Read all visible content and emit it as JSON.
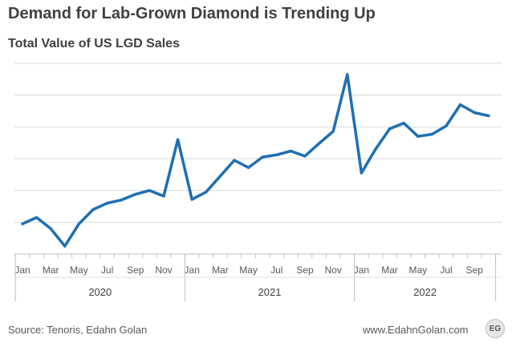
{
  "chart_data": {
    "type": "line",
    "title": "Demand for Lab-Grown Diamond is Trending Up",
    "subtitle": "Total Value of US LGD Sales",
    "xlabel": "",
    "ylabel": "",
    "ylim": [
      0,
      6
    ],
    "grid": true,
    "legend": "none",
    "line_color": "#1f6fb2",
    "categories": [
      "Jan 2020",
      "Feb 2020",
      "Mar 2020",
      "Apr 2020",
      "May 2020",
      "Jun 2020",
      "Jul 2020",
      "Aug 2020",
      "Sep 2020",
      "Oct 2020",
      "Nov 2020",
      "Dec 2020",
      "Jan 2021",
      "Feb 2021",
      "Mar 2021",
      "Apr 2021",
      "May 2021",
      "Jun 2021",
      "Jul 2021",
      "Aug 2021",
      "Sep 2021",
      "Oct 2021",
      "Nov 2021",
      "Dec 2021",
      "Jan 2022",
      "Feb 2022",
      "Mar 2022",
      "Apr 2022",
      "May 2022",
      "Jun 2022",
      "Jul 2022",
      "Aug 2022",
      "Sep 2022",
      "Oct 2022"
    ],
    "series": [
      {
        "values": [
          0.95,
          1.15,
          0.8,
          0.25,
          0.95,
          1.4,
          1.6,
          1.7,
          1.88,
          2.0,
          1.82,
          3.6,
          1.72,
          1.95,
          2.45,
          2.95,
          2.72,
          3.05,
          3.12,
          3.24,
          3.08,
          3.48,
          3.86,
          5.65,
          2.55,
          3.3,
          3.94,
          4.12,
          3.7,
          3.77,
          4.03,
          4.7,
          4.45,
          4.35
        ]
      }
    ],
    "month_ticks": [
      {
        "index": 0,
        "label": "Jan"
      },
      {
        "index": 2,
        "label": "Mar"
      },
      {
        "index": 4,
        "label": "May"
      },
      {
        "index": 6,
        "label": "Jul"
      },
      {
        "index": 8,
        "label": "Sep"
      },
      {
        "index": 10,
        "label": "Nov"
      },
      {
        "index": 12,
        "label": "Jan"
      },
      {
        "index": 14,
        "label": "Mar"
      },
      {
        "index": 16,
        "label": "May"
      },
      {
        "index": 18,
        "label": "Jul"
      },
      {
        "index": 20,
        "label": "Sep"
      },
      {
        "index": 22,
        "label": "Nov"
      },
      {
        "index": 24,
        "label": "Jan"
      },
      {
        "index": 26,
        "label": "Mar"
      },
      {
        "index": 28,
        "label": "May"
      },
      {
        "index": 30,
        "label": "Jul"
      },
      {
        "index": 32,
        "label": "Sep"
      }
    ],
    "year_groups": [
      {
        "label": "2020",
        "start": 0,
        "end": 11
      },
      {
        "label": "2021",
        "start": 12,
        "end": 23
      },
      {
        "label": "2022",
        "start": 24,
        "end": 33
      }
    ]
  },
  "footer": {
    "source": "Source: Tenoris, Edahn Golan",
    "website": "www.EdahnGolan.com",
    "logo_text": "EG"
  }
}
